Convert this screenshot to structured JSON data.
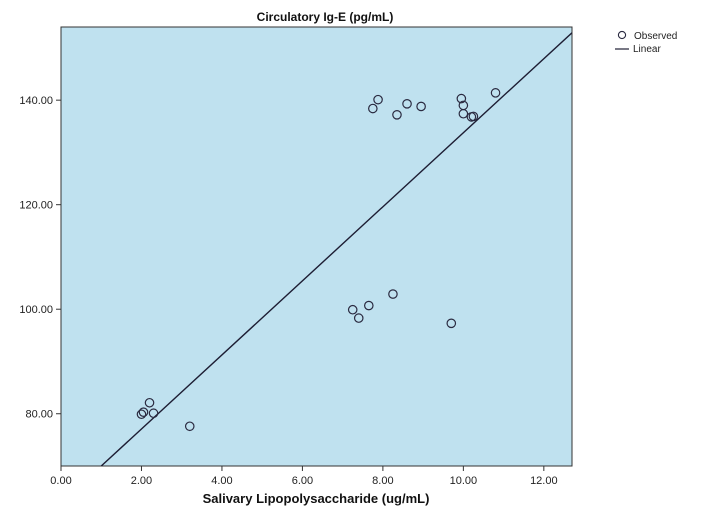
{
  "chart_data": {
    "type": "scatter",
    "title": "Circulatory Ig-E (pg/mL)",
    "xlabel": "Salivary Lipopolysaccharide (ug/mL)",
    "ylabel": "",
    "xlim": [
      0,
      12.7
    ],
    "ylim": [
      70,
      154
    ],
    "x_ticks": [
      0,
      2,
      4,
      6,
      8,
      10,
      12
    ],
    "x_tick_labels": [
      "0.00",
      "2.00",
      "4.00",
      "6.00",
      "8.00",
      "10.00",
      "12.00"
    ],
    "y_ticks": [
      80,
      100,
      120,
      140
    ],
    "y_tick_labels": [
      "80.00",
      "100.00",
      "120.00",
      "140.00"
    ],
    "grid": false,
    "legend_position": "outside-top-right",
    "series": [
      {
        "name": "Observed",
        "kind": "points",
        "marker": "open-circle",
        "points": [
          {
            "x": 2.2,
            "y": 82.1
          },
          {
            "x": 2.05,
            "y": 80.3
          },
          {
            "x": 2.0,
            "y": 79.9
          },
          {
            "x": 2.3,
            "y": 80.1
          },
          {
            "x": 3.2,
            "y": 77.6
          },
          {
            "x": 7.25,
            "y": 99.9
          },
          {
            "x": 7.4,
            "y": 98.3
          },
          {
            "x": 7.65,
            "y": 100.7
          },
          {
            "x": 8.25,
            "y": 102.9
          },
          {
            "x": 9.7,
            "y": 97.3
          },
          {
            "x": 7.75,
            "y": 138.4
          },
          {
            "x": 7.88,
            "y": 140.1
          },
          {
            "x": 8.35,
            "y": 137.2
          },
          {
            "x": 8.6,
            "y": 139.3
          },
          {
            "x": 8.95,
            "y": 138.8
          },
          {
            "x": 9.95,
            "y": 140.3
          },
          {
            "x": 10.0,
            "y": 139.0
          },
          {
            "x": 10.0,
            "y": 137.4
          },
          {
            "x": 10.2,
            "y": 136.8
          },
          {
            "x": 10.25,
            "y": 136.9
          },
          {
            "x": 10.8,
            "y": 141.4
          }
        ]
      },
      {
        "name": "Linear",
        "kind": "line",
        "points": [
          {
            "x": 1.0,
            "y": 70.0
          },
          {
            "x": 12.7,
            "y": 152.9
          }
        ]
      }
    ],
    "colors": {
      "plot_background": "#bfe1ef",
      "marker_stroke": "#2a2a40",
      "line": "#1d1d33",
      "frame": "#333333"
    }
  }
}
